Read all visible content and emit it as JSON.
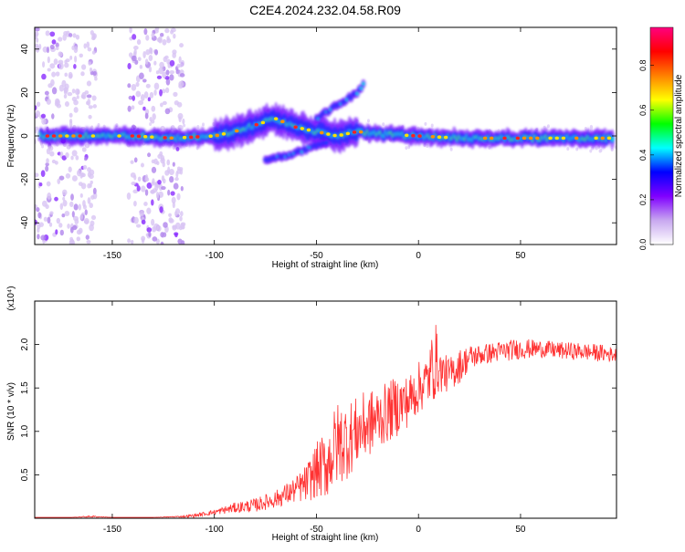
{
  "title": "C2E4.2024.232.04.58.R09",
  "chart_data": [
    {
      "type": "heatmap",
      "xlabel": "Height of straight line (km)",
      "ylabel": "Frequency (Hz)",
      "xlim": [
        -188,
        97
      ],
      "ylim": [
        -50,
        50
      ],
      "xticks": [
        -150,
        -100,
        -50,
        0,
        50
      ],
      "xtick_labels": [
        "-150",
        "-100",
        "-50",
        "0",
        "50"
      ],
      "yticks": [
        -40,
        -20,
        0,
        20,
        40
      ],
      "ytick_labels": [
        "-40",
        "-20",
        "0",
        "20",
        "40"
      ],
      "colorbar": {
        "label": "Normalized spectral amplitude",
        "range": [
          0.0,
          0.97
        ],
        "ticks": [
          0.0,
          0.2,
          0.4,
          0.6,
          0.8
        ],
        "tick_labels": [
          "0.0",
          "0.2",
          "0.4",
          "0.6",
          "0.8"
        ],
        "colors": [
          "#ffffff",
          "#c8a8f0",
          "#8000ff",
          "#0000ff",
          "#00ffff",
          "#00ff00",
          "#ffff00",
          "#ff8000",
          "#ff0000",
          "#ff0080"
        ]
      },
      "ridge": [
        {
          "x": -185,
          "y": 0
        },
        {
          "x": -160,
          "y": 0
        },
        {
          "x": -140,
          "y": 0
        },
        {
          "x": -120,
          "y": -1
        },
        {
          "x": -100,
          "y": 0
        },
        {
          "x": -90,
          "y": 2
        },
        {
          "x": -80,
          "y": 5
        },
        {
          "x": -70,
          "y": 8
        },
        {
          "x": -60,
          "y": 4
        },
        {
          "x": -50,
          "y": 2
        },
        {
          "x": -40,
          "y": 0
        },
        {
          "x": -30,
          "y": 2
        },
        {
          "x": -20,
          "y": 1
        },
        {
          "x": 0,
          "y": 0
        },
        {
          "x": 20,
          "y": -1
        },
        {
          "x": 50,
          "y": -1
        },
        {
          "x": 70,
          "y": -1
        },
        {
          "x": 95,
          "y": -1
        }
      ],
      "branches": [
        {
          "points": [
            {
              "x": -50,
              "y": 8
            },
            {
              "x": -40,
              "y": 14
            },
            {
              "x": -30,
              "y": 20
            },
            {
              "x": -27,
              "y": 24
            }
          ]
        },
        {
          "points": [
            {
              "x": -75,
              "y": -11
            },
            {
              "x": -65,
              "y": -9
            },
            {
              "x": -55,
              "y": -6
            },
            {
              "x": -45,
              "y": -3
            }
          ]
        }
      ],
      "noise_bands": [
        {
          "x_start": -188,
          "x_end": -158,
          "y_start": -50,
          "y_end": 50
        },
        {
          "x_start": -142,
          "x_end": -115,
          "y_start": -50,
          "y_end": 50
        }
      ]
    },
    {
      "type": "line",
      "xlabel": "Height of straight line (km)",
      "ylabel": "SNR (10 * v/v)",
      "y_multiplier": "(x10⁴)",
      "xlim": [
        -188,
        97
      ],
      "ylim": [
        0,
        2.5
      ],
      "xticks": [
        -150,
        -100,
        -50,
        0,
        50
      ],
      "xtick_labels": [
        "-150",
        "-100",
        "-50",
        "0",
        "50"
      ],
      "yticks": [
        0.5,
        1.0,
        1.5,
        2.0
      ],
      "ytick_labels": [
        "0.5",
        "1.0",
        "1.5",
        "2.0"
      ],
      "color": "#ff3333",
      "series": [
        {
          "x": [
            -188,
            -170,
            -160,
            -150,
            -130,
            -115,
            -110,
            -100,
            -90,
            -80,
            -70,
            -60,
            -55,
            -50,
            -45,
            -40,
            -35,
            -30,
            -25,
            -20,
            -15,
            -10,
            -5,
            0,
            5,
            8,
            10,
            15,
            20,
            25,
            30,
            40,
            50,
            60,
            70,
            80,
            90,
            97
          ],
          "values": [
            0.01,
            0.01,
            0.02,
            0.01,
            0.01,
            0.02,
            0.03,
            0.07,
            0.12,
            0.15,
            0.22,
            0.33,
            0.4,
            0.55,
            0.62,
            0.85,
            0.9,
            1.0,
            1.08,
            1.15,
            1.22,
            1.3,
            1.35,
            1.5,
            1.6,
            1.85,
            1.7,
            1.65,
            1.75,
            1.85,
            1.88,
            1.92,
            1.95,
            1.95,
            1.93,
            1.92,
            1.9,
            1.88
          ],
          "noise_amplitude": [
            0.0,
            0.0,
            0.01,
            0.0,
            0.0,
            0.01,
            0.02,
            0.03,
            0.06,
            0.08,
            0.1,
            0.15,
            0.22,
            0.32,
            0.4,
            0.5,
            0.45,
            0.4,
            0.4,
            0.35,
            0.35,
            0.35,
            0.3,
            0.3,
            0.3,
            0.5,
            0.25,
            0.2,
            0.2,
            0.15,
            0.12,
            0.12,
            0.12,
            0.1,
            0.1,
            0.1,
            0.1,
            0.08
          ]
        }
      ]
    }
  ]
}
